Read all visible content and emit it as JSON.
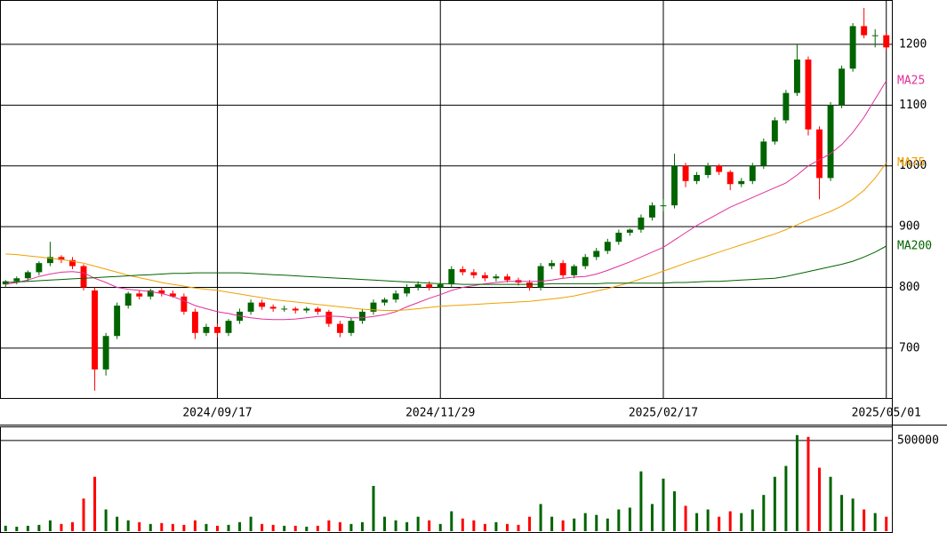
{
  "chart_data": {
    "type": "candlestick",
    "categories": [
      null,
      null,
      null,
      null,
      null,
      null,
      null,
      null,
      null,
      null,
      null,
      null,
      null,
      null,
      null,
      null,
      null,
      null,
      null,
      "2024/09/17",
      null,
      null,
      null,
      null,
      null,
      null,
      null,
      null,
      null,
      null,
      null,
      null,
      null,
      null,
      null,
      null,
      null,
      null,
      null,
      "2024/11/29",
      null,
      null,
      null,
      null,
      null,
      null,
      null,
      null,
      null,
      null,
      null,
      null,
      null,
      null,
      null,
      null,
      null,
      null,
      null,
      "2025/02/17",
      null,
      null,
      null,
      null,
      null,
      null,
      null,
      null,
      null,
      null,
      null,
      null,
      null,
      null,
      null,
      null,
      null,
      null,
      null,
      "2025/05/01"
    ],
    "open": [
      805,
      810,
      815,
      825,
      840,
      850,
      845,
      835,
      795,
      665,
      720,
      770,
      790,
      785,
      795,
      790,
      785,
      760,
      725,
      735,
      725,
      745,
      760,
      775,
      768,
      765,
      765,
      762,
      765,
      760,
      740,
      725,
      745,
      760,
      775,
      780,
      790,
      800,
      805,
      800,
      805,
      830,
      825,
      820,
      815,
      818,
      812,
      808,
      800,
      835,
      840,
      820,
      835,
      850,
      860,
      875,
      890,
      895,
      915,
      935,
      935,
      1000,
      975,
      985,
      1000,
      990,
      970,
      975,
      1000,
      1040,
      1075,
      1120,
      1175,
      1060,
      980,
      1100,
      1160,
      1230,
      1215,
      1215
    ],
    "high": [
      812,
      818,
      828,
      843,
      875,
      853,
      850,
      838,
      800,
      725,
      775,
      793,
      795,
      798,
      800,
      795,
      790,
      765,
      740,
      740,
      748,
      765,
      780,
      780,
      772,
      770,
      768,
      768,
      768,
      763,
      745,
      750,
      765,
      780,
      783,
      795,
      805,
      810,
      810,
      808,
      835,
      835,
      830,
      825,
      822,
      822,
      816,
      812,
      840,
      845,
      845,
      838,
      855,
      865,
      880,
      895,
      897,
      920,
      940,
      945,
      1020,
      1005,
      990,
      1005,
      1003,
      993,
      980,
      1005,
      1045,
      1080,
      1125,
      1200,
      1180,
      1065,
      1105,
      1165,
      1235,
      1260,
      1225,
      1220
    ],
    "low": [
      800,
      805,
      810,
      820,
      835,
      840,
      830,
      795,
      630,
      655,
      715,
      765,
      780,
      780,
      785,
      783,
      755,
      715,
      720,
      718,
      720,
      740,
      755,
      763,
      760,
      760,
      757,
      758,
      755,
      735,
      718,
      720,
      740,
      755,
      770,
      775,
      785,
      795,
      795,
      795,
      800,
      820,
      815,
      810,
      810,
      808,
      803,
      795,
      795,
      830,
      815,
      815,
      830,
      845,
      855,
      870,
      885,
      890,
      910,
      925,
      930,
      965,
      970,
      980,
      985,
      960,
      965,
      970,
      995,
      1035,
      1070,
      1115,
      1050,
      945,
      975,
      1095,
      1155,
      1210,
      1195,
      1190
    ],
    "close": [
      810,
      815,
      825,
      840,
      850,
      845,
      835,
      800,
      665,
      720,
      770,
      790,
      785,
      795,
      790,
      785,
      760,
      725,
      735,
      725,
      745,
      760,
      775,
      768,
      765,
      765,
      762,
      765,
      760,
      740,
      725,
      745,
      760,
      775,
      780,
      790,
      800,
      805,
      800,
      805,
      830,
      825,
      820,
      815,
      818,
      812,
      808,
      800,
      835,
      840,
      820,
      835,
      850,
      860,
      875,
      890,
      895,
      915,
      935,
      935,
      1000,
      975,
      985,
      1000,
      990,
      970,
      975,
      1000,
      1040,
      1075,
      1120,
      1175,
      1060,
      980,
      1100,
      1160,
      1230,
      1215,
      1215,
      1195
    ],
    "volume": [
      30000,
      25000,
      30000,
      35000,
      60000,
      40000,
      50000,
      180000,
      300000,
      120000,
      80000,
      60000,
      50000,
      40000,
      45000,
      40000,
      35000,
      60000,
      40000,
      30000,
      35000,
      50000,
      80000,
      40000,
      35000,
      30000,
      30000,
      25000,
      30000,
      60000,
      50000,
      40000,
      50000,
      250000,
      80000,
      60000,
      50000,
      80000,
      60000,
      40000,
      110000,
      70000,
      60000,
      40000,
      50000,
      40000,
      35000,
      80000,
      150000,
      80000,
      60000,
      70000,
      100000,
      90000,
      70000,
      120000,
      130000,
      330000,
      150000,
      290000,
      220000,
      140000,
      100000,
      120000,
      80000,
      110000,
      100000,
      120000,
      200000,
      300000,
      360000,
      530000,
      520000,
      350000,
      300000,
      200000,
      180000,
      120000,
      100000,
      80000
    ],
    "up_color": "#006400",
    "down_color": "#ff0000",
    "ylim": [
      618,
      1273
    ],
    "yticks": [
      700,
      800,
      900,
      1000,
      1100,
      1200
    ],
    "volume_ylim": [
      0,
      578000
    ],
    "volume_yticks": [
      500000
    ],
    "grid": true,
    "series": [
      {
        "name": "MA25",
        "color": "#e0309a",
        "values": [
          805,
          808,
          812,
          818,
          822,
          825,
          826,
          824,
          815,
          808,
          800,
          797,
          795,
          793,
          790,
          785,
          778,
          770,
          765,
          760,
          757,
          753,
          750,
          748,
          747,
          747,
          748,
          750,
          752,
          753,
          752,
          750,
          750,
          752,
          755,
          760,
          768,
          775,
          782,
          788,
          795,
          800,
          803,
          806,
          808,
          810,
          810,
          810,
          810,
          812,
          815,
          817,
          818,
          822,
          828,
          835,
          842,
          850,
          858,
          866,
          878,
          890,
          902,
          912,
          922,
          932,
          940,
          948,
          956,
          964,
          972,
          985,
          1000,
          1010,
          1020,
          1035,
          1055,
          1080,
          1110,
          1140
        ]
      },
      {
        "name": "MA75",
        "color": "#f0a000",
        "values": [
          855,
          854,
          852,
          850,
          848,
          846,
          843,
          840,
          835,
          830,
          825,
          820,
          816,
          812,
          808,
          805,
          802,
          799,
          797,
          795,
          792,
          789,
          786,
          783,
          780,
          778,
          776,
          774,
          772,
          770,
          768,
          766,
          764,
          763,
          762,
          762,
          763,
          765,
          767,
          769,
          770,
          771,
          772,
          773,
          774,
          775,
          776,
          777,
          779,
          781,
          783,
          786,
          790,
          794,
          798,
          803,
          808,
          814,
          820,
          827,
          833,
          840,
          846,
          852,
          858,
          864,
          870,
          876,
          882,
          888,
          895,
          903,
          911,
          918,
          925,
          934,
          945,
          960,
          980,
          1005
        ]
      },
      {
        "name": "MA200",
        "color": "#006400",
        "values": [
          808,
          809,
          810,
          811,
          812,
          813,
          814,
          815,
          816,
          817,
          818,
          819,
          820,
          821,
          822,
          823,
          823,
          824,
          824,
          824,
          824,
          824,
          823,
          822,
          821,
          820,
          819,
          818,
          817,
          816,
          815,
          814,
          813,
          812,
          811,
          810,
          809,
          808,
          807,
          806,
          806,
          805,
          805,
          805,
          805,
          805,
          805,
          805,
          805,
          806,
          806,
          806,
          806,
          806,
          807,
          807,
          807,
          807,
          807,
          807,
          808,
          808,
          809,
          810,
          810,
          811,
          812,
          813,
          814,
          815,
          818,
          822,
          826,
          830,
          834,
          838,
          843,
          850,
          858,
          868
        ]
      }
    ]
  }
}
